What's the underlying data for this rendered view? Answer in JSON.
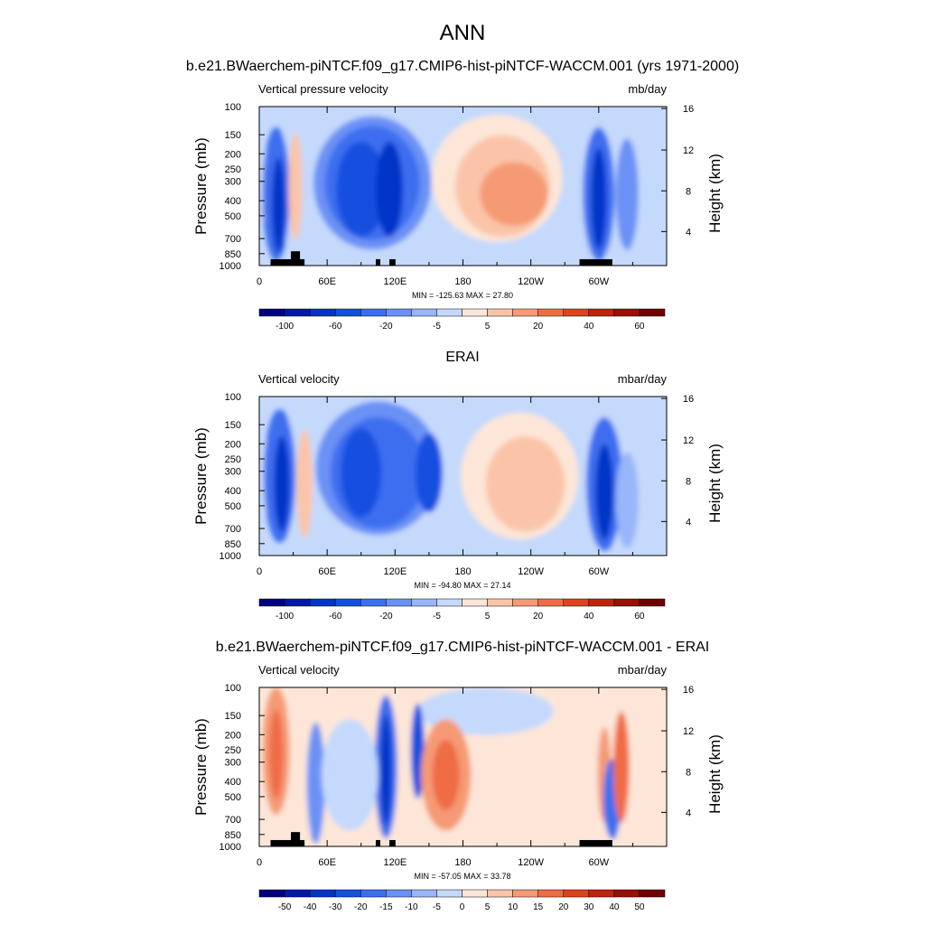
{
  "figure": {
    "title": "ANN",
    "colors": {
      "blues": [
        "#00007f",
        "#0019a8",
        "#0035c8",
        "#1250e0",
        "#3c6ef0",
        "#6a91f5",
        "#98b6f9",
        "#c4d9fc"
      ],
      "reds": [
        "#fde6d8",
        "#fbc4a8",
        "#f59a74",
        "#ef6c45",
        "#e0421e",
        "#c0220c",
        "#9a0f06",
        "#700000"
      ],
      "land": "#000000"
    }
  },
  "chart_data": [
    {
      "type": "heatmap",
      "title": "b.e21.BWaerchem-piNTCF.f09_g17.CMIP6-hist-piNTCF-WACCM.001 (yrs 1971-2000)",
      "left_label": "Vertical pressure velocity",
      "units": "mb/day",
      "ylabel": "Pressure (mb)",
      "ylabel2": "Height (km)",
      "x_ticks": [
        "0",
        "60E",
        "120E",
        "180",
        "120W",
        "60W"
      ],
      "y_ticks": [
        "100",
        "150",
        "200",
        "250",
        "300",
        "400",
        "500",
        "700",
        "850",
        "1000"
      ],
      "y2_ticks": [
        "4",
        "8",
        "12",
        "16"
      ],
      "xlim": [
        0,
        360
      ],
      "ylim": [
        1000,
        100
      ],
      "stats": "MIN = -125.63  MAX =  27.80",
      "min": -125.63,
      "max": 27.8,
      "colorbar_labels": [
        "-100",
        "-60",
        "-20",
        "-5",
        "5",
        "20",
        "40",
        "60"
      ],
      "has_land_mask": true
    },
    {
      "type": "heatmap",
      "title": "ERAI",
      "left_label": "Vertical velocity",
      "units": "mbar/day",
      "ylabel": "Pressure (mb)",
      "ylabel2": "Height (km)",
      "x_ticks": [
        "0",
        "60E",
        "120E",
        "180",
        "120W",
        "60W"
      ],
      "y_ticks": [
        "100",
        "150",
        "200",
        "250",
        "300",
        "400",
        "500",
        "700",
        "850",
        "1000"
      ],
      "y2_ticks": [
        "4",
        "8",
        "12",
        "16"
      ],
      "xlim": [
        0,
        360
      ],
      "ylim": [
        1000,
        100
      ],
      "stats": "MIN = -94.80  MAX =  27.14",
      "min": -94.8,
      "max": 27.14,
      "colorbar_labels": [
        "-100",
        "-60",
        "-20",
        "-5",
        "5",
        "20",
        "40",
        "60"
      ],
      "has_land_mask": false
    },
    {
      "type": "heatmap",
      "title": "b.e21.BWaerchem-piNTCF.f09_g17.CMIP6-hist-piNTCF-WACCM.001 - ERAI",
      "left_label": "Vertical velocity",
      "units": "mbar/day",
      "ylabel": "Pressure (mb)",
      "ylabel2": "Height (km)",
      "x_ticks": [
        "0",
        "60E",
        "120E",
        "180",
        "120W",
        "60W"
      ],
      "y_ticks": [
        "100",
        "150",
        "200",
        "250",
        "300",
        "400",
        "500",
        "700",
        "850",
        "1000"
      ],
      "y2_ticks": [
        "4",
        "8",
        "12",
        "16"
      ],
      "xlim": [
        0,
        360
      ],
      "ylim": [
        1000,
        100
      ],
      "stats": "MIN = -57.05  MAX =  33.78",
      "min": -57.05,
      "max": 33.78,
      "colorbar_labels": [
        "-50",
        "-40",
        "-30",
        "-20",
        "-15",
        "-10",
        "-5",
        "0",
        "5",
        "10",
        "15",
        "20",
        "30",
        "40",
        "50"
      ],
      "has_land_mask": true
    }
  ]
}
